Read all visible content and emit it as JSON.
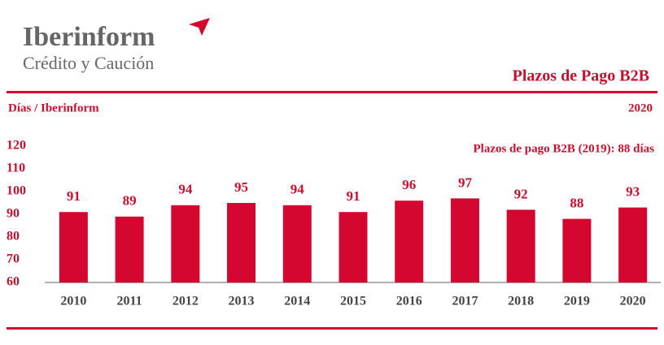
{
  "logo": {
    "name": "Iberinform",
    "tagline": "Crédito y Caución"
  },
  "chart_data": {
    "type": "bar",
    "title": "Plazos de Pago B2B",
    "subtitle": "Días / Iberinform",
    "year": "2020",
    "annotation": "Plazos de pago B2B (2019): 88 días",
    "categories": [
      "2010",
      "2011",
      "2012",
      "2013",
      "2014",
      "2015",
      "2016",
      "2017",
      "2018",
      "2019",
      "2020"
    ],
    "values": [
      91,
      89,
      94,
      95,
      94,
      91,
      96,
      97,
      92,
      88,
      93
    ],
    "color": "#d3072f",
    "ylim": [
      60,
      120
    ],
    "yticks": [
      60,
      70,
      80,
      90,
      100,
      110,
      120
    ],
    "grid": false
  }
}
